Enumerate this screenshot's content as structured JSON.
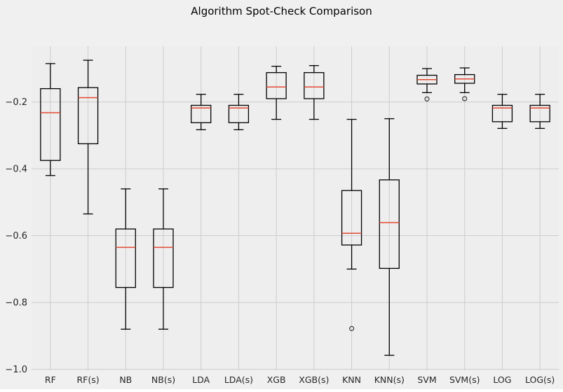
{
  "title": "Algorithm Spot-Check Comparison",
  "colors": {
    "figure_bg": "#f0f0f0",
    "axes_bg": "#eeeeee",
    "grid": "#cccccc",
    "box_edge": "#000000",
    "median": "#e24a33",
    "flier_edge": "#2b2b2b",
    "text": "#262626"
  },
  "chart_data": {
    "type": "boxplot",
    "title": "Algorithm Spot-Check Comparison",
    "xlabel": "",
    "ylabel": "",
    "grid": true,
    "ylim": [
      -1.003,
      -0.033
    ],
    "yticks": [
      {
        "value": -0.2,
        "label": "−0.2"
      },
      {
        "value": -0.4,
        "label": "−0.4"
      },
      {
        "value": -0.6,
        "label": "−0.6"
      },
      {
        "value": -0.8,
        "label": "−0.8"
      },
      {
        "value": -1.0,
        "label": "−1.0"
      }
    ],
    "categories": [
      "RF",
      "RF(s)",
      "NB",
      "NB(s)",
      "LDA",
      "LDA(s)",
      "XGB",
      "XGB(s)",
      "KNN",
      "KNN(s)",
      "SVM",
      "SVM(s)",
      "LOG",
      "LOG(s)"
    ],
    "boxes": [
      {
        "name": "RF",
        "whislo": -0.42,
        "q1": -0.375,
        "med": -0.232,
        "q3": -0.16,
        "whishi": -0.085,
        "fliers": []
      },
      {
        "name": "RF(s)",
        "whislo": -0.535,
        "q1": -0.325,
        "med": -0.187,
        "q3": -0.157,
        "whishi": -0.075,
        "fliers": []
      },
      {
        "name": "NB",
        "whislo": -0.88,
        "q1": -0.755,
        "med": -0.635,
        "q3": -0.58,
        "whishi": -0.46,
        "fliers": []
      },
      {
        "name": "NB(s)",
        "whislo": -0.88,
        "q1": -0.755,
        "med": -0.635,
        "q3": -0.58,
        "whishi": -0.46,
        "fliers": []
      },
      {
        "name": "LDA",
        "whislo": -0.283,
        "q1": -0.262,
        "med": -0.218,
        "q3": -0.21,
        "whishi": -0.177,
        "fliers": []
      },
      {
        "name": "LDA(s)",
        "whislo": -0.283,
        "q1": -0.262,
        "med": -0.218,
        "q3": -0.21,
        "whishi": -0.177,
        "fliers": []
      },
      {
        "name": "XGB",
        "whislo": -0.252,
        "q1": -0.19,
        "med": -0.155,
        "q3": -0.112,
        "whishi": -0.093,
        "fliers": []
      },
      {
        "name": "XGB(s)",
        "whislo": -0.252,
        "q1": -0.19,
        "med": -0.155,
        "q3": -0.112,
        "whishi": -0.091,
        "fliers": []
      },
      {
        "name": "KNN",
        "whislo": -0.7,
        "q1": -0.628,
        "med": -0.593,
        "q3": -0.465,
        "whishi": -0.252,
        "fliers": [
          -0.878
        ]
      },
      {
        "name": "KNN(s)",
        "whislo": -0.958,
        "q1": -0.698,
        "med": -0.561,
        "q3": -0.433,
        "whishi": -0.25,
        "fliers": []
      },
      {
        "name": "SVM",
        "whislo": -0.172,
        "q1": -0.146,
        "med": -0.133,
        "q3": -0.12,
        "whishi": -0.1,
        "fliers": [
          -0.191
        ]
      },
      {
        "name": "SVM(s)",
        "whislo": -0.172,
        "q1": -0.144,
        "med": -0.131,
        "q3": -0.118,
        "whishi": -0.098,
        "fliers": [
          -0.19
        ]
      },
      {
        "name": "LOG",
        "whislo": -0.279,
        "q1": -0.259,
        "med": -0.218,
        "q3": -0.21,
        "whishi": -0.177,
        "fliers": []
      },
      {
        "name": "LOG(s)",
        "whislo": -0.279,
        "q1": -0.259,
        "med": -0.218,
        "q3": -0.21,
        "whishi": -0.177,
        "fliers": []
      }
    ]
  }
}
